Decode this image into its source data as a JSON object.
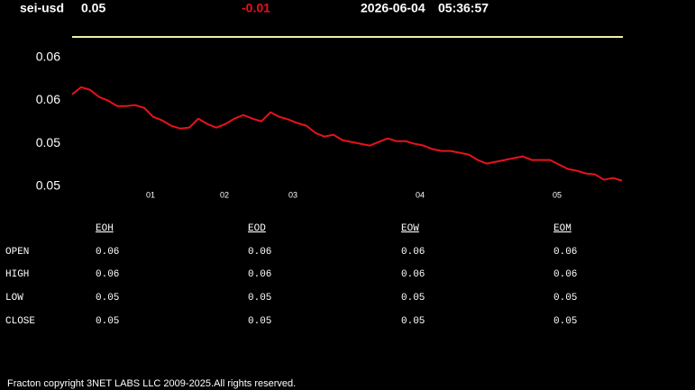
{
  "header": {
    "symbol": "sei-usd",
    "price": 0.05,
    "change": -0.01,
    "date": "2026-06-04",
    "time": "05:36:57"
  },
  "chart_data": {
    "type": "line",
    "x": [
      0,
      1,
      2,
      3,
      4,
      5,
      6,
      7,
      8,
      9,
      10,
      11,
      12,
      13,
      14,
      15,
      16,
      17,
      18,
      19,
      20,
      21,
      22,
      23,
      24,
      25,
      26,
      27,
      28,
      29,
      30,
      31,
      32,
      33,
      34,
      35,
      36,
      37,
      38,
      39,
      40,
      41,
      42,
      43,
      44,
      45,
      46,
      47,
      48,
      49,
      50,
      51,
      52,
      53,
      54,
      55,
      56,
      57,
      58,
      59,
      60,
      61
    ],
    "series": [
      {
        "color": "#e8121b",
        "values": [
          0.0582,
          0.05904,
          0.05873,
          0.05789,
          0.05747,
          0.05684,
          0.05684,
          0.05695,
          0.05663,
          0.05558,
          0.05516,
          0.05454,
          0.05422,
          0.05433,
          0.05537,
          0.05474,
          0.05433,
          0.05474,
          0.05537,
          0.05579,
          0.05537,
          0.05506,
          0.05611,
          0.05558,
          0.05527,
          0.05485,
          0.05454,
          0.0537,
          0.05328,
          0.05349,
          0.05286,
          0.05265,
          0.05244,
          0.05223,
          0.05265,
          0.05307,
          0.05275,
          0.05275,
          0.05244,
          0.05223,
          0.05181,
          0.0516,
          0.0516,
          0.05139,
          0.05118,
          0.05055,
          0.05013,
          0.05034,
          0.05055,
          0.05076,
          0.05097,
          0.05055,
          0.05055,
          0.05055,
          0.05003,
          0.0495,
          0.0493,
          0.04898,
          0.04888,
          0.04825,
          0.04846,
          0.04814
        ]
      }
    ],
    "xlim": [
      0,
      61
    ],
    "xticks": [
      {
        "value": 8.7,
        "label": "01"
      },
      {
        "value": 16.9,
        "label": "02"
      },
      {
        "value": 24.5,
        "label": "03"
      },
      {
        "value": 38.6,
        "label": "04"
      },
      {
        "value": 53.8,
        "label": "05"
      }
    ],
    "ylim": [
      0.046,
      0.065
    ],
    "yticks": [
      {
        "value": 0.0475,
        "label": "0.05"
      },
      {
        "value": 0.0525,
        "label": "0.05"
      },
      {
        "value": 0.0575,
        "label": "0.06"
      },
      {
        "value": 0.0625,
        "label": "0.06"
      }
    ]
  },
  "table": {
    "columns": [
      "EOH",
      "EOD",
      "EOW",
      "EOM"
    ],
    "rows": [
      {
        "label": "OPEN",
        "values": [
          0.06,
          0.06,
          0.06,
          0.06
        ]
      },
      {
        "label": "HIGH",
        "values": [
          0.06,
          0.06,
          0.06,
          0.06
        ]
      },
      {
        "label": "LOW",
        "values": [
          0.05,
          0.05,
          0.05,
          0.05
        ]
      },
      {
        "label": "CLOSE",
        "values": [
          0.05,
          0.05,
          0.05,
          0.05
        ]
      }
    ]
  },
  "footer": "Fracton copyright 3NET LABS LLC 2009-2025.All rights reserved."
}
